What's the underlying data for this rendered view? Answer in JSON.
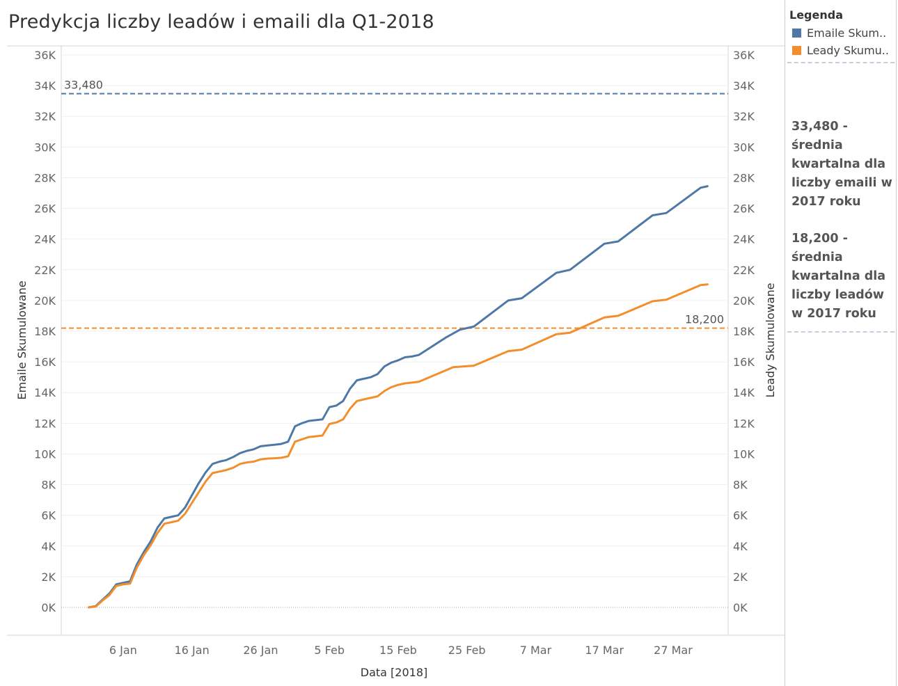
{
  "title": "Predykcja liczby leadów i emaili dla Q1-2018",
  "chart_data": {
    "type": "line",
    "title": "Predykcja liczby leadów i emaili dla Q1-2018",
    "xlabel": "Data [2018]",
    "ylabel_left": "Emaile Skumulowane",
    "ylabel_right": "Leady Skumulowane",
    "ylim": [
      -1800,
      36000
    ],
    "y_ticks": [
      {
        "value": 0,
        "label": "0K"
      },
      {
        "value": 2000,
        "label": "2K"
      },
      {
        "value": 4000,
        "label": "4K"
      },
      {
        "value": 6000,
        "label": "6K"
      },
      {
        "value": 8000,
        "label": "8K"
      },
      {
        "value": 10000,
        "label": "10K"
      },
      {
        "value": 12000,
        "label": "12K"
      },
      {
        "value": 14000,
        "label": "14K"
      },
      {
        "value": 16000,
        "label": "16K"
      },
      {
        "value": 18000,
        "label": "18K"
      },
      {
        "value": 20000,
        "label": "20K"
      },
      {
        "value": 22000,
        "label": "22K"
      },
      {
        "value": 24000,
        "label": "24K"
      },
      {
        "value": 26000,
        "label": "26K"
      },
      {
        "value": 28000,
        "label": "28K"
      },
      {
        "value": 30000,
        "label": "30K"
      },
      {
        "value": 32000,
        "label": "32K"
      },
      {
        "value": 34000,
        "label": "34K"
      },
      {
        "value": 36000,
        "label": "36K"
      }
    ],
    "x_range": [
      "2017-12-28",
      "2018-04-04"
    ],
    "x_ticks": [
      {
        "date": "2018-01-06",
        "label": "6 Jan"
      },
      {
        "date": "2018-01-16",
        "label": "16 Jan"
      },
      {
        "date": "2018-01-26",
        "label": "26 Jan"
      },
      {
        "date": "2018-02-05",
        "label": "5 Feb"
      },
      {
        "date": "2018-02-15",
        "label": "15 Feb"
      },
      {
        "date": "2018-02-25",
        "label": "25 Feb"
      },
      {
        "date": "2018-03-07",
        "label": "7 Mar"
      },
      {
        "date": "2018-03-17",
        "label": "17 Mar"
      },
      {
        "date": "2018-03-27",
        "label": "27 Mar"
      }
    ],
    "grid": "horizontal",
    "reference_lines": [
      {
        "value": 33480,
        "label": "33,480",
        "color": "#4e79a7",
        "label_position": "left"
      },
      {
        "value": 18200,
        "label": "18,200",
        "color": "#f28e2b",
        "label_position": "right"
      }
    ],
    "series": [
      {
        "name": "Emaile Skumulowane",
        "color": "#4e79a7",
        "points": [
          [
            "2018-01-01",
            0
          ],
          [
            "2018-01-02",
            80
          ],
          [
            "2018-01-03",
            500
          ],
          [
            "2018-01-04",
            900
          ],
          [
            "2018-01-05",
            1500
          ],
          [
            "2018-01-06",
            1600
          ],
          [
            "2018-01-07",
            1700
          ],
          [
            "2018-01-08",
            2800
          ],
          [
            "2018-01-09",
            3600
          ],
          [
            "2018-01-10",
            4300
          ],
          [
            "2018-01-11",
            5200
          ],
          [
            "2018-01-12",
            5800
          ],
          [
            "2018-01-13",
            5900
          ],
          [
            "2018-01-14",
            6000
          ],
          [
            "2018-01-15",
            6500
          ],
          [
            "2018-01-16",
            7300
          ],
          [
            "2018-01-17",
            8100
          ],
          [
            "2018-01-18",
            8800
          ],
          [
            "2018-01-19",
            9350
          ],
          [
            "2018-01-20",
            9500
          ],
          [
            "2018-01-21",
            9600
          ],
          [
            "2018-01-22",
            9800
          ],
          [
            "2018-01-23",
            10050
          ],
          [
            "2018-01-24",
            10200
          ],
          [
            "2018-01-25",
            10300
          ],
          [
            "2018-01-26",
            10500
          ],
          [
            "2018-01-27",
            10550
          ],
          [
            "2018-01-28",
            10600
          ],
          [
            "2018-01-29",
            10650
          ],
          [
            "2018-01-30",
            10800
          ],
          [
            "2018-01-31",
            11800
          ],
          [
            "2018-02-01",
            12000
          ],
          [
            "2018-02-02",
            12150
          ],
          [
            "2018-02-03",
            12200
          ],
          [
            "2018-02-04",
            12250
          ],
          [
            "2018-02-05",
            13050
          ],
          [
            "2018-02-06",
            13150
          ],
          [
            "2018-02-07",
            13450
          ],
          [
            "2018-02-08",
            14250
          ],
          [
            "2018-02-09",
            14800
          ],
          [
            "2018-02-10",
            14900
          ],
          [
            "2018-02-11",
            15000
          ],
          [
            "2018-02-12",
            15200
          ],
          [
            "2018-02-13",
            15700
          ],
          [
            "2018-02-14",
            15950
          ],
          [
            "2018-02-15",
            16100
          ],
          [
            "2018-02-16",
            16300
          ],
          [
            "2018-02-17",
            16350
          ],
          [
            "2018-02-18",
            16450
          ],
          [
            "2018-02-22",
            17600
          ],
          [
            "2018-02-24",
            18100
          ],
          [
            "2018-02-26",
            18300
          ],
          [
            "2018-03-03",
            20000
          ],
          [
            "2018-03-05",
            20150
          ],
          [
            "2018-03-10",
            21800
          ],
          [
            "2018-03-12",
            22000
          ],
          [
            "2018-03-17",
            23700
          ],
          [
            "2018-03-19",
            23850
          ],
          [
            "2018-03-24",
            25550
          ],
          [
            "2018-03-26",
            25700
          ],
          [
            "2018-03-31",
            27350
          ],
          [
            "2018-04-01",
            27450
          ]
        ]
      },
      {
        "name": "Leady Skumulowane",
        "color": "#f28e2b",
        "points": [
          [
            "2018-01-01",
            0
          ],
          [
            "2018-01-02",
            50
          ],
          [
            "2018-01-03",
            450
          ],
          [
            "2018-01-04",
            800
          ],
          [
            "2018-01-05",
            1400
          ],
          [
            "2018-01-06",
            1500
          ],
          [
            "2018-01-07",
            1550
          ],
          [
            "2018-01-08",
            2600
          ],
          [
            "2018-01-09",
            3400
          ],
          [
            "2018-01-10",
            4050
          ],
          [
            "2018-01-11",
            4850
          ],
          [
            "2018-01-12",
            5450
          ],
          [
            "2018-01-13",
            5550
          ],
          [
            "2018-01-14",
            5650
          ],
          [
            "2018-01-15",
            6100
          ],
          [
            "2018-01-16",
            6800
          ],
          [
            "2018-01-17",
            7500
          ],
          [
            "2018-01-18",
            8200
          ],
          [
            "2018-01-19",
            8750
          ],
          [
            "2018-01-20",
            8850
          ],
          [
            "2018-01-21",
            8950
          ],
          [
            "2018-01-22",
            9100
          ],
          [
            "2018-01-23",
            9350
          ],
          [
            "2018-01-24",
            9450
          ],
          [
            "2018-01-25",
            9500
          ],
          [
            "2018-01-26",
            9650
          ],
          [
            "2018-01-27",
            9700
          ],
          [
            "2018-01-28",
            9720
          ],
          [
            "2018-01-29",
            9750
          ],
          [
            "2018-01-30",
            9850
          ],
          [
            "2018-01-31",
            10800
          ],
          [
            "2018-02-01",
            10950
          ],
          [
            "2018-02-02",
            11100
          ],
          [
            "2018-02-03",
            11150
          ],
          [
            "2018-02-04",
            11200
          ],
          [
            "2018-02-05",
            11950
          ],
          [
            "2018-02-06",
            12050
          ],
          [
            "2018-02-07",
            12250
          ],
          [
            "2018-02-08",
            12950
          ],
          [
            "2018-02-09",
            13450
          ],
          [
            "2018-02-10",
            13550
          ],
          [
            "2018-02-11",
            13650
          ],
          [
            "2018-02-12",
            13750
          ],
          [
            "2018-02-13",
            14100
          ],
          [
            "2018-02-14",
            14350
          ],
          [
            "2018-02-15",
            14500
          ],
          [
            "2018-02-16",
            14600
          ],
          [
            "2018-02-17",
            14650
          ],
          [
            "2018-02-18",
            14700
          ],
          [
            "2018-02-23",
            15650
          ],
          [
            "2018-02-26",
            15750
          ],
          [
            "2018-03-03",
            16700
          ],
          [
            "2018-03-05",
            16800
          ],
          [
            "2018-03-10",
            17800
          ],
          [
            "2018-03-12",
            17900
          ],
          [
            "2018-03-17",
            18900
          ],
          [
            "2018-03-19",
            19000
          ],
          [
            "2018-03-24",
            19950
          ],
          [
            "2018-03-26",
            20050
          ],
          [
            "2018-03-31",
            21000
          ],
          [
            "2018-04-01",
            21050
          ]
        ]
      }
    ]
  },
  "legend": {
    "title": "Legenda",
    "placement": "right",
    "items": [
      {
        "label": "Emaile Skum..",
        "color": "#4e79a7"
      },
      {
        "label": "Leady Skumu..",
        "color": "#f28e2b"
      }
    ]
  },
  "annotations": {
    "emails_note": "33,480 - średnia kwartalna dla liczby emaili w 2017 roku",
    "leads_note": "18,200 - średnia kwartalna dla liczby leadów w 2017 roku"
  }
}
